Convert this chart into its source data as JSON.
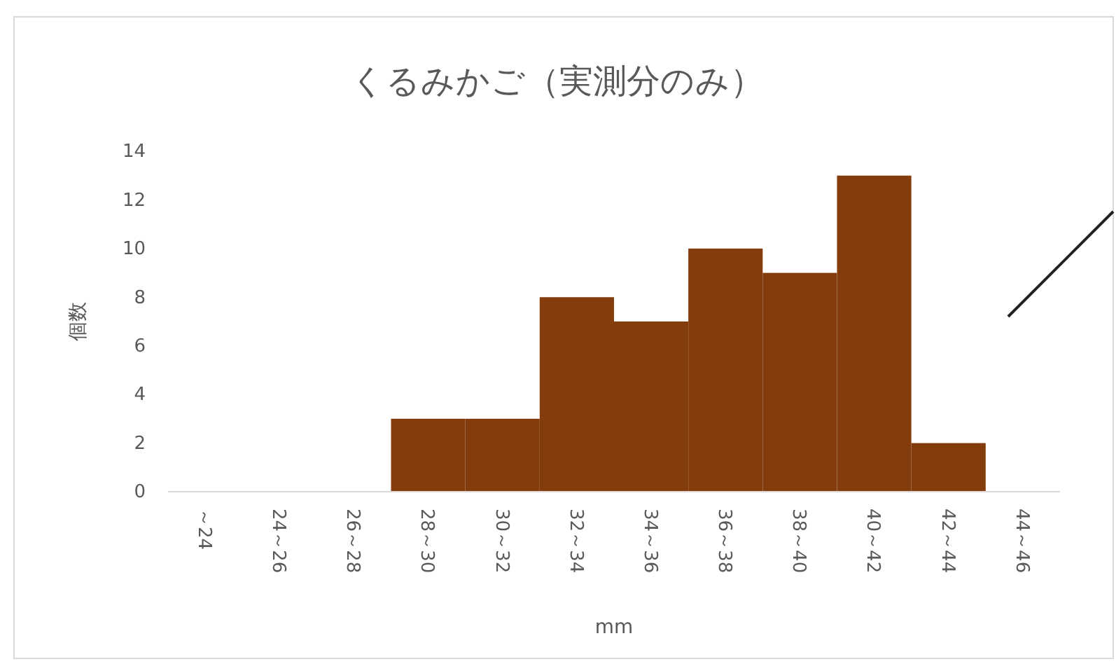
{
  "chart_data": {
    "type": "bar",
    "title": "くるみかご（実測分のみ）",
    "xlabel": "mm",
    "ylabel": "個数",
    "categories": [
      "～24",
      "24～26",
      "26～28",
      "28～30",
      "30～32",
      "32～34",
      "34～36",
      "36～38",
      "38～40",
      "40～42",
      "42～44",
      "44～46"
    ],
    "series": [
      {
        "color": "#843c0c",
        "values": [
          0,
          0,
          0,
          3,
          3,
          8,
          7,
          10,
          9,
          13,
          2,
          0
        ]
      }
    ],
    "ylim": [
      0,
      14
    ],
    "yticks": [
      0,
      2,
      4,
      6,
      8,
      10,
      12,
      14
    ],
    "grid": false
  }
}
